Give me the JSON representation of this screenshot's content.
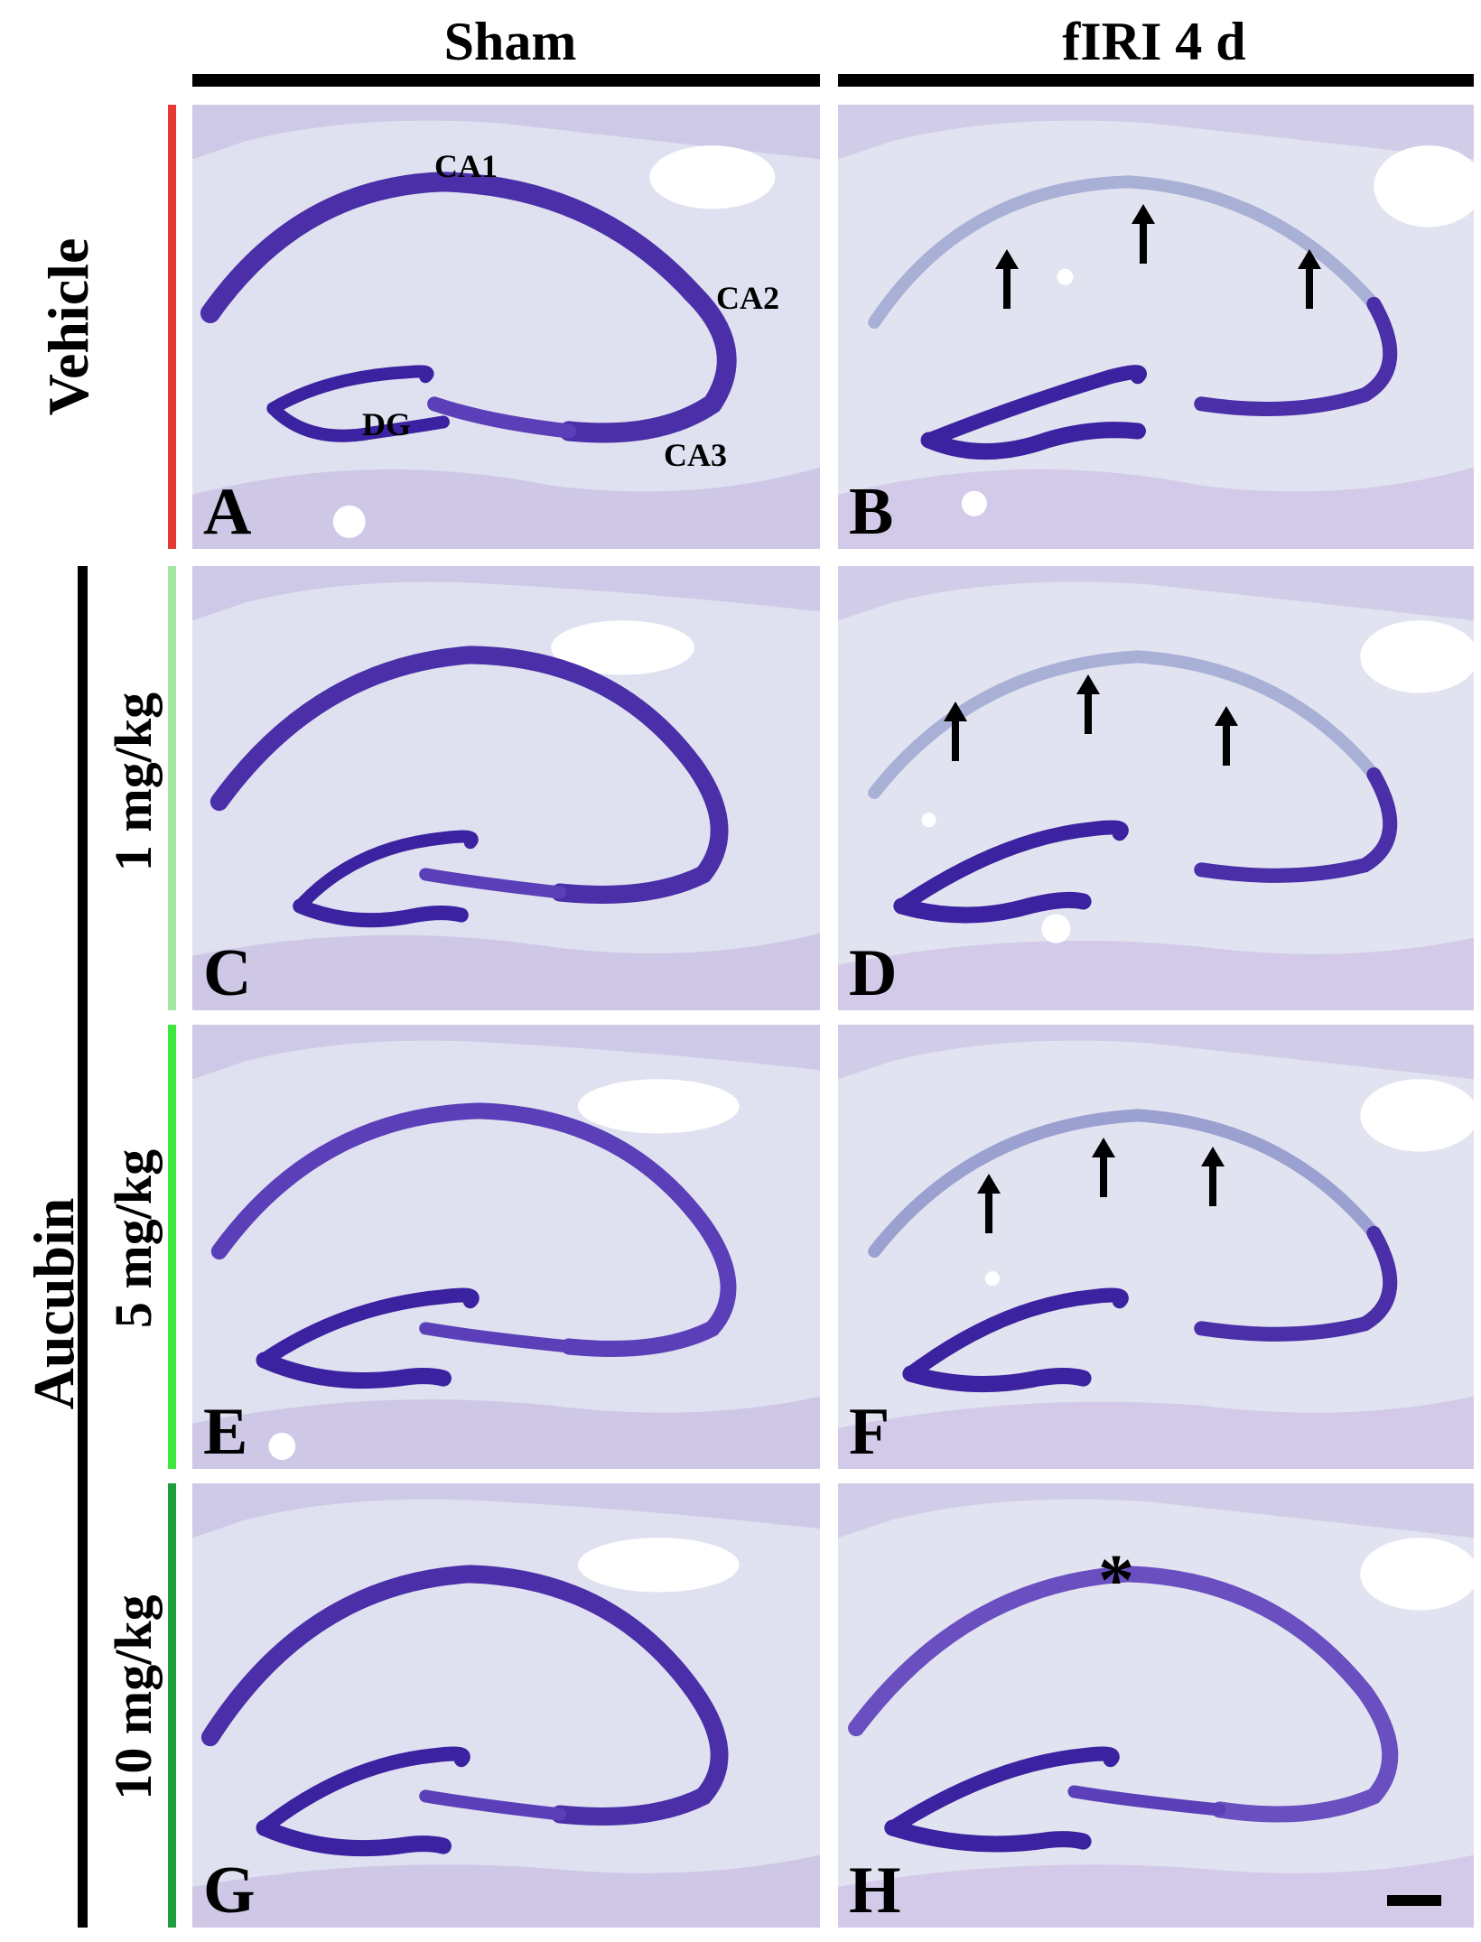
{
  "columns": [
    "Sham",
    "fIRI 4 d"
  ],
  "rows": {
    "vehicle": "Vehicle",
    "aucubin": "Aucubin",
    "dose_1": "1 mg/kg",
    "dose_5": "5 mg/kg",
    "dose_10": "10 mg/kg"
  },
  "panels": [
    "A",
    "B",
    "C",
    "D",
    "E",
    "F",
    "G",
    "H"
  ],
  "regions": {
    "ca1": "CA1",
    "ca2": "CA2",
    "ca3": "CA3",
    "dg": "DG"
  },
  "asterisk": "*",
  "colors": {
    "vehicle": "#e53935",
    "dose_1": "#a5e6a5",
    "dose_5": "#3ee63e",
    "dose_10": "#1e9e3c",
    "stain": "#4a2fa8",
    "tissue": "#d9dcef"
  }
}
